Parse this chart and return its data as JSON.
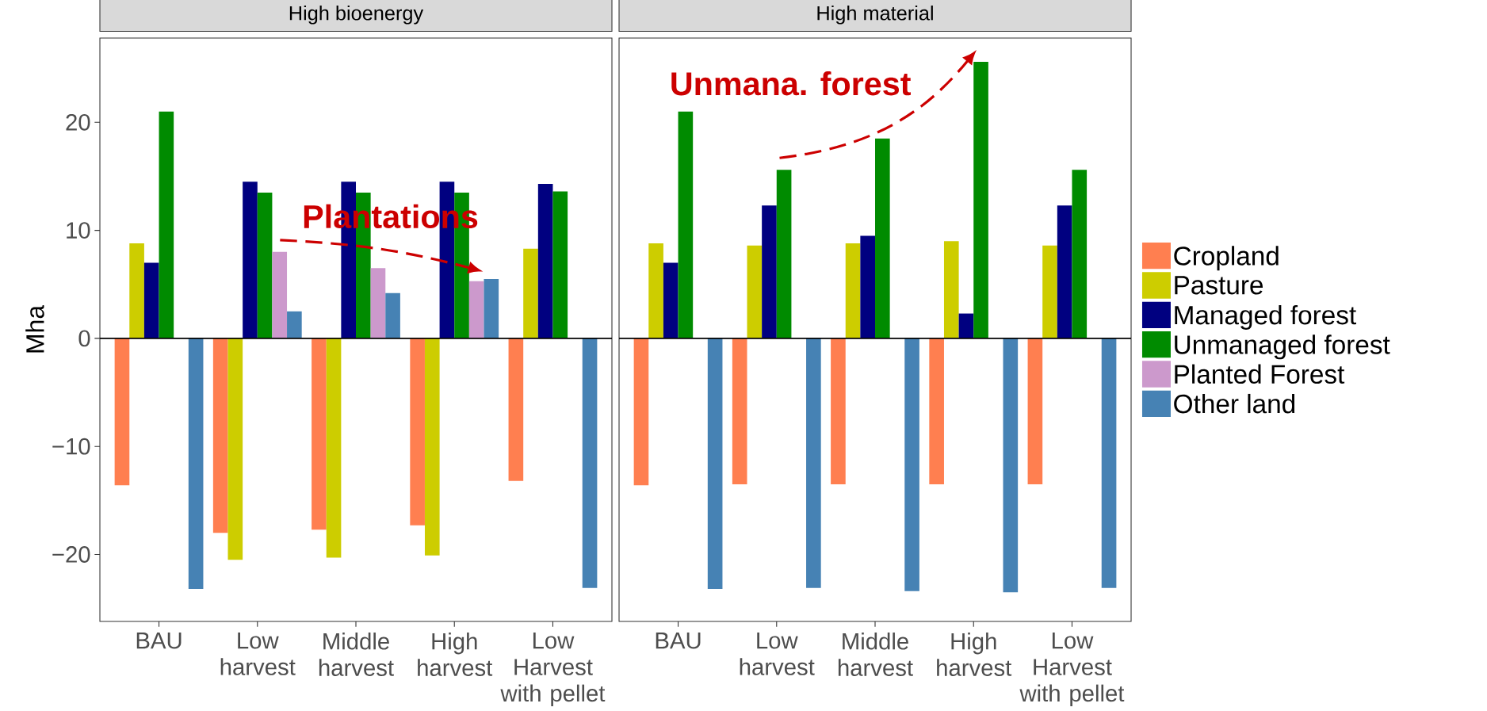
{
  "chart_data": [
    {
      "type": "bar",
      "title": "High bioenergy",
      "ylabel": "Mha",
      "categories": [
        "BAU",
        "Low harvest",
        "Middle harvest",
        "High harvest",
        "Low Harvest with pellet"
      ],
      "series": [
        {
          "color": "#ff7f50",
          "values": [
            -13.6,
            -18.0,
            -17.7,
            -17.3,
            -13.2
          ]
        },
        {
          "color": "#cdcd00",
          "values": [
            8.8,
            -20.5,
            -20.3,
            -20.1,
            8.3
          ]
        },
        {
          "color": "#000080",
          "values": [
            7.0,
            14.5,
            14.5,
            14.5,
            14.3
          ]
        },
        {
          "color": "#008b00",
          "values": [
            21.0,
            13.5,
            13.5,
            13.5,
            13.6
          ]
        },
        {
          "color": "#cc99cc",
          "values": [
            null,
            8.0,
            6.5,
            5.3,
            null
          ]
        },
        {
          "color": "#4682b4",
          "values": [
            -23.2,
            2.5,
            4.2,
            5.5,
            -23.1
          ]
        }
      ],
      "ylim": [
        -26.2,
        27.8
      ],
      "yticks": [
        {
          "value": -20,
          "label": "−20"
        },
        {
          "value": -10,
          "label": "−10"
        },
        0,
        10,
        20
      ],
      "ref_lines": [
        {
          "axis": "y",
          "value": 0
        }
      ],
      "annotations": [
        "Plantations"
      ]
    },
    {
      "type": "bar",
      "title": "High material",
      "categories": [
        "BAU",
        "Low harvest",
        "Middle harvest",
        "High harvest",
        "Low Harvest with pellet"
      ],
      "series": [
        {
          "name": "Cropland",
          "color": "#ff7f50",
          "values": [
            -13.6,
            -13.5,
            -13.5,
            -13.5,
            -13.5
          ]
        },
        {
          "name": "Pasture",
          "color": "#cdcd00",
          "values": [
            8.8,
            8.6,
            8.8,
            9.0,
            8.6
          ]
        },
        {
          "name": "Managed forest",
          "color": "#000080",
          "values": [
            7.0,
            12.3,
            9.5,
            2.3,
            12.3
          ]
        },
        {
          "name": "Unmanaged forest",
          "color": "#008b00",
          "values": [
            21.0,
            15.6,
            18.5,
            25.6,
            15.6
          ]
        },
        {
          "name": "Planted Forest",
          "color": "#cc99cc",
          "values": [
            null,
            null,
            null,
            null,
            null
          ]
        },
        {
          "name": "Other land",
          "color": "#4682b4",
          "values": [
            -23.2,
            -23.1,
            -23.4,
            -23.5,
            -23.1
          ]
        }
      ],
      "ylim": [
        -26.2,
        27.8
      ],
      "yticks": [
        -20,
        -10,
        0,
        10,
        20
      ],
      "tick_labels": "x",
      "ref_lines": [
        {
          "axis": "y",
          "value": 0
        }
      ],
      "legend": "right",
      "annotations": [
        "Unmana. forest"
      ]
    }
  ]
}
